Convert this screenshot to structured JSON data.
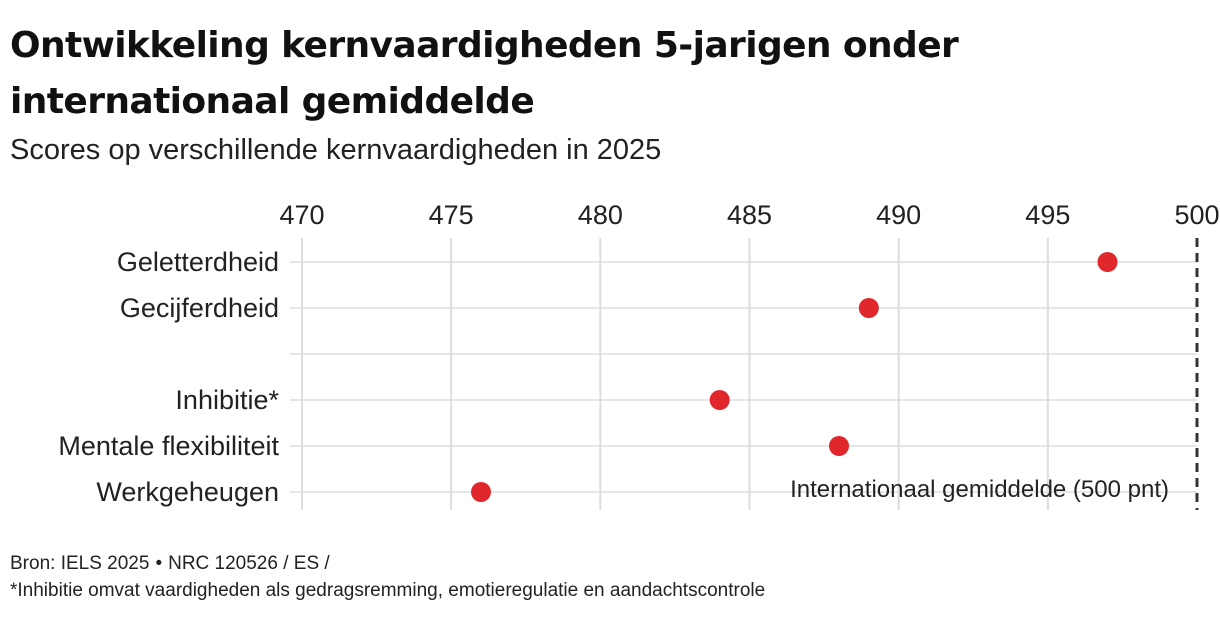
{
  "title": "Ontwikkeling kernvaardigheden 5-jarigen onder internationaal gemiddelde",
  "subtitle": "Scores op verschillende kernvaardigheden in 2025",
  "chart_data": {
    "type": "scatter",
    "orientation": "horizontal-dot",
    "xlim": [
      470,
      500
    ],
    "xticks": [
      470,
      475,
      480,
      485,
      490,
      495,
      500
    ],
    "categories": [
      "Geletterdheid",
      "Gecijferdheid",
      "",
      "Inhibitie*",
      "Mentale flexibiliteit",
      "Werkgeheugen"
    ],
    "points": [
      {
        "category": "Geletterdheid",
        "value": 497
      },
      {
        "category": "Gecijferdheid",
        "value": 489
      },
      {
        "category": "Inhibitie*",
        "value": 484
      },
      {
        "category": "Mentale flexibiliteit",
        "value": 488
      },
      {
        "category": "Werkgeheugen",
        "value": 476
      }
    ],
    "reference_line": {
      "value": 500,
      "label": "Internationaal gemiddelde (500 pnt)",
      "style": "dashed"
    },
    "grid": true,
    "marker_color": "#e0282c"
  },
  "footer": {
    "source": "Bron: IELS 2025",
    "credit": "NRC 120526 / ES /",
    "note": "*Inhibitie omvat vaardigheden als gedragsremming, emotieregulatie en aandachtscontrole"
  }
}
